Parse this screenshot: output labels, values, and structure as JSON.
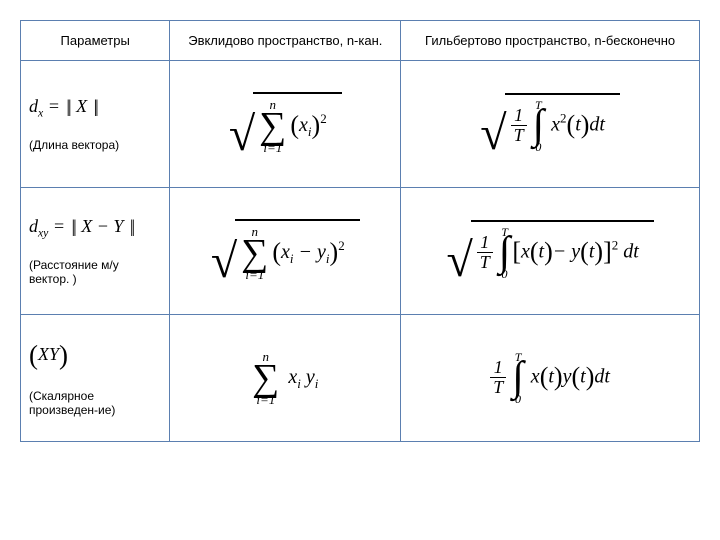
{
  "headers": {
    "col1": "Параметры",
    "col2": "Эвклидово пространство, n-кан.",
    "col3": "Гильбертово пространство, n-бесконечно"
  },
  "rows": {
    "r1": {
      "param_formula_html": "d<span class='sub'>x</span> = <span class='bars'>||</span> X <span class='bars'>||</span>",
      "param_label": "(Длина   вектора)",
      "euclid_html": "<span class='sqrt-wrap'><span class='sqrt-sign'>√</span><span class='sqrt-body'><span class='sum'><span class='sum-top'>n</span><span class='sum-sig'>∑</span><span class='sum-bot'>i=1</span></span><span class='paren'>(</span>x<span class='sub'>i</span><span class='paren'>)</span><span class='sup'>2</span></span></span>",
      "hilbert_html": "<span class='sqrt-wrap'><span class='sqrt-sign'>√</span><span class='sqrt-body'><span class='frac'><span class='frac-top'>1</span><span class='frac-line'></span><span class='frac-bot'>T</span></span><span class='intg'><span class='int-top'>T</span><span class='int-sig'>∫</span><span class='int-bot'>0</span></span> x<span class='sup'>2</span><span class='paren'>(</span>t<span class='paren'>)</span>dt</span></span>"
    },
    "r2": {
      "param_formula_html": "d<span class='sub'>xy</span> = <span class='bars'>||</span> X − Y <span class='bars'>||</span>",
      "param_label": "(Расстояние м/у вектор. )",
      "euclid_html": "<span class='sqrt-wrap'><span class='sqrt-sign'>√</span><span class='sqrt-body'><span class='sum'><span class='sum-top'>n</span><span class='sum-sig'>∑</span><span class='sum-bot'>i=1</span></span><span class='paren'>(</span>x<span class='sub'>i</span> − y<span class='sub'>i</span><span class='paren'>)</span><span class='sup'>2</span></span></span>",
      "hilbert_html": "<span class='sqrt-wrap'><span class='sqrt-sign'>√</span><span class='sqrt-body'><span class='frac'><span class='frac-top'>1</span><span class='frac-line'></span><span class='frac-bot'>T</span></span><span class='intg'><span class='int-top'>T</span><span class='int-sig'>∫</span><span class='int-bot'>0</span></span><span class='paren'>[</span>x<span class='paren'>(</span>t<span class='paren'>)</span>− y<span class='paren'>(</span>t<span class='paren'>)</span><span class='paren'>]</span><span class='sup'>2</span> dt</span></span>"
    },
    "r3": {
      "param_formula_html": "<span class='big-paren'>(</span>XY<span class='big-paren'>)</span>",
      "param_label": "(Скалярное произведен-ие)",
      "euclid_html": "<span class='sum'><span class='sum-top'>n</span><span class='sum-sig'>∑</span><span class='sum-bot'>i=1</span></span> x<span class='sub'>i</span> y<span class='sub'>i</span>",
      "hilbert_html": "<span class='frac'><span class='frac-top'>1</span><span class='frac-line'></span><span class='frac-bot'>T</span></span><span class='intg'><span class='int-top'>T</span><span class='int-sig'>∫</span><span class='int-bot'>0</span></span> x<span class='paren'>(</span>t<span class='paren'>)</span>y<span class='paren'>(</span>t<span class='paren'>)</span>dt"
    }
  },
  "style": {
    "border_color": "#5b7fb0",
    "background": "#ffffff",
    "header_fontsize": 13,
    "label_fontsize": 12,
    "formula_fontsize": 20
  }
}
